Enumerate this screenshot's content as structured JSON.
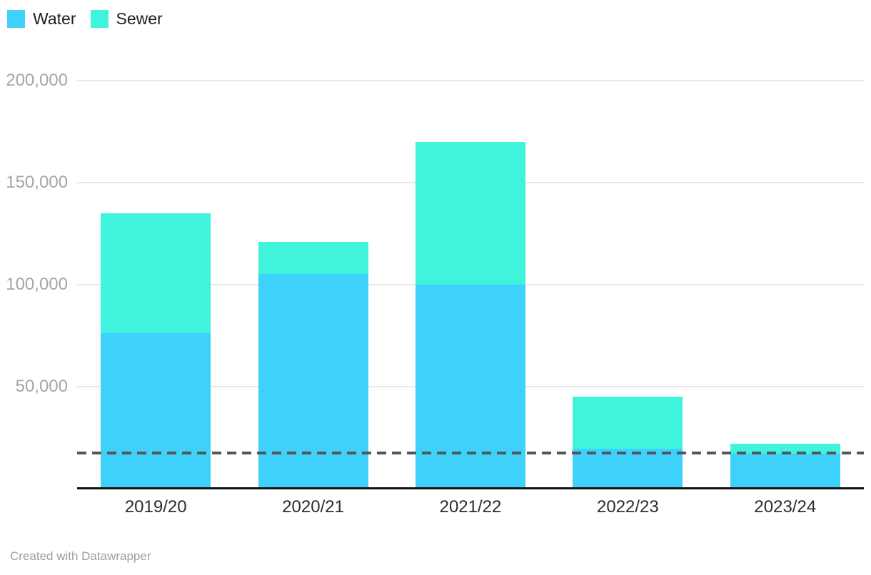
{
  "legend": {
    "items": [
      {
        "label": "Water",
        "color": "#3ed1fb"
      },
      {
        "label": "Sewer",
        "color": "#3ff3dc"
      }
    ]
  },
  "footer": {
    "text": "Created with Datawrapper"
  },
  "chart_data": {
    "type": "bar",
    "stacked": true,
    "title": "",
    "xlabel": "",
    "ylabel": "",
    "categories": [
      "2019/20",
      "2020/21",
      "2021/22",
      "2022/23",
      "2023/24"
    ],
    "series": [
      {
        "name": "Water",
        "color": "#3ed1fb",
        "values": [
          76000,
          105000,
          100000,
          19500,
          17000
        ]
      },
      {
        "name": "Sewer",
        "color": "#3ff3dc",
        "values": [
          59000,
          16000,
          70000,
          25500,
          5000
        ]
      }
    ],
    "totals": [
      135000,
      121000,
      170000,
      45000,
      22000
    ],
    "yticks": [
      50000,
      100000,
      150000,
      200000
    ],
    "ytick_labels": [
      "50,000",
      "100,000",
      "150,000",
      "200,000"
    ],
    "ylim": [
      0,
      200000
    ],
    "grid": true,
    "legend_position": "top-left",
    "reference_line": {
      "value": 17300,
      "style": "dashed",
      "color": "#565656"
    },
    "colors": {
      "grid": "#e8e8e8",
      "axis": "#111111",
      "x_tick_text": "#2c2c2c",
      "y_tick_text": "#a6a6a6",
      "credit_text": "#9d9d9d"
    }
  }
}
